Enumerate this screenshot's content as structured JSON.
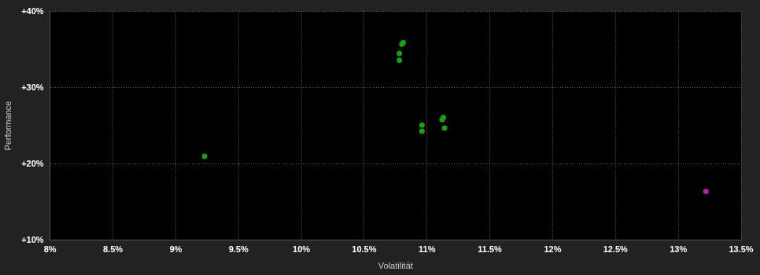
{
  "chart_data": {
    "type": "scatter",
    "x_label": "Volatilität",
    "y_label": "Performance",
    "xlim": [
      8,
      13.5
    ],
    "ylim": [
      10,
      40
    ],
    "xticks": [
      {
        "value": 8,
        "label": "8%"
      },
      {
        "value": 8.5,
        "label": "8.5%"
      },
      {
        "value": 9,
        "label": "9%"
      },
      {
        "value": 9.5,
        "label": "9.5%"
      },
      {
        "value": 10,
        "label": "10%"
      },
      {
        "value": 10.5,
        "label": "10.5%"
      },
      {
        "value": 11,
        "label": "11%"
      },
      {
        "value": 11.5,
        "label": "11.5%"
      },
      {
        "value": 12,
        "label": "12%"
      },
      {
        "value": 12.5,
        "label": "12.5%"
      },
      {
        "value": 13,
        "label": "13%"
      },
      {
        "value": 13.5,
        "label": "13.5%"
      }
    ],
    "yticks": [
      {
        "value": 10,
        "label": "+10%"
      },
      {
        "value": 20,
        "label": "+20%"
      },
      {
        "value": 30,
        "label": "+30%"
      },
      {
        "value": 40,
        "label": "+40%"
      }
    ],
    "grid": true,
    "series": [
      {
        "color": "#1a9e1a",
        "marker": "circle",
        "x": [
          10.8,
          10.81,
          10.78,
          10.78,
          10.96,
          10.96,
          11.12,
          11.13,
          11.14,
          9.23
        ],
        "values": [
          35.7,
          35.9,
          34.5,
          33.6,
          25.1,
          24.3,
          25.8,
          26.1,
          24.7,
          21.0
        ]
      },
      {
        "color": "#b0209e",
        "marker": "circle",
        "x": [
          13.22
        ],
        "values": [
          16.4
        ]
      }
    ]
  }
}
